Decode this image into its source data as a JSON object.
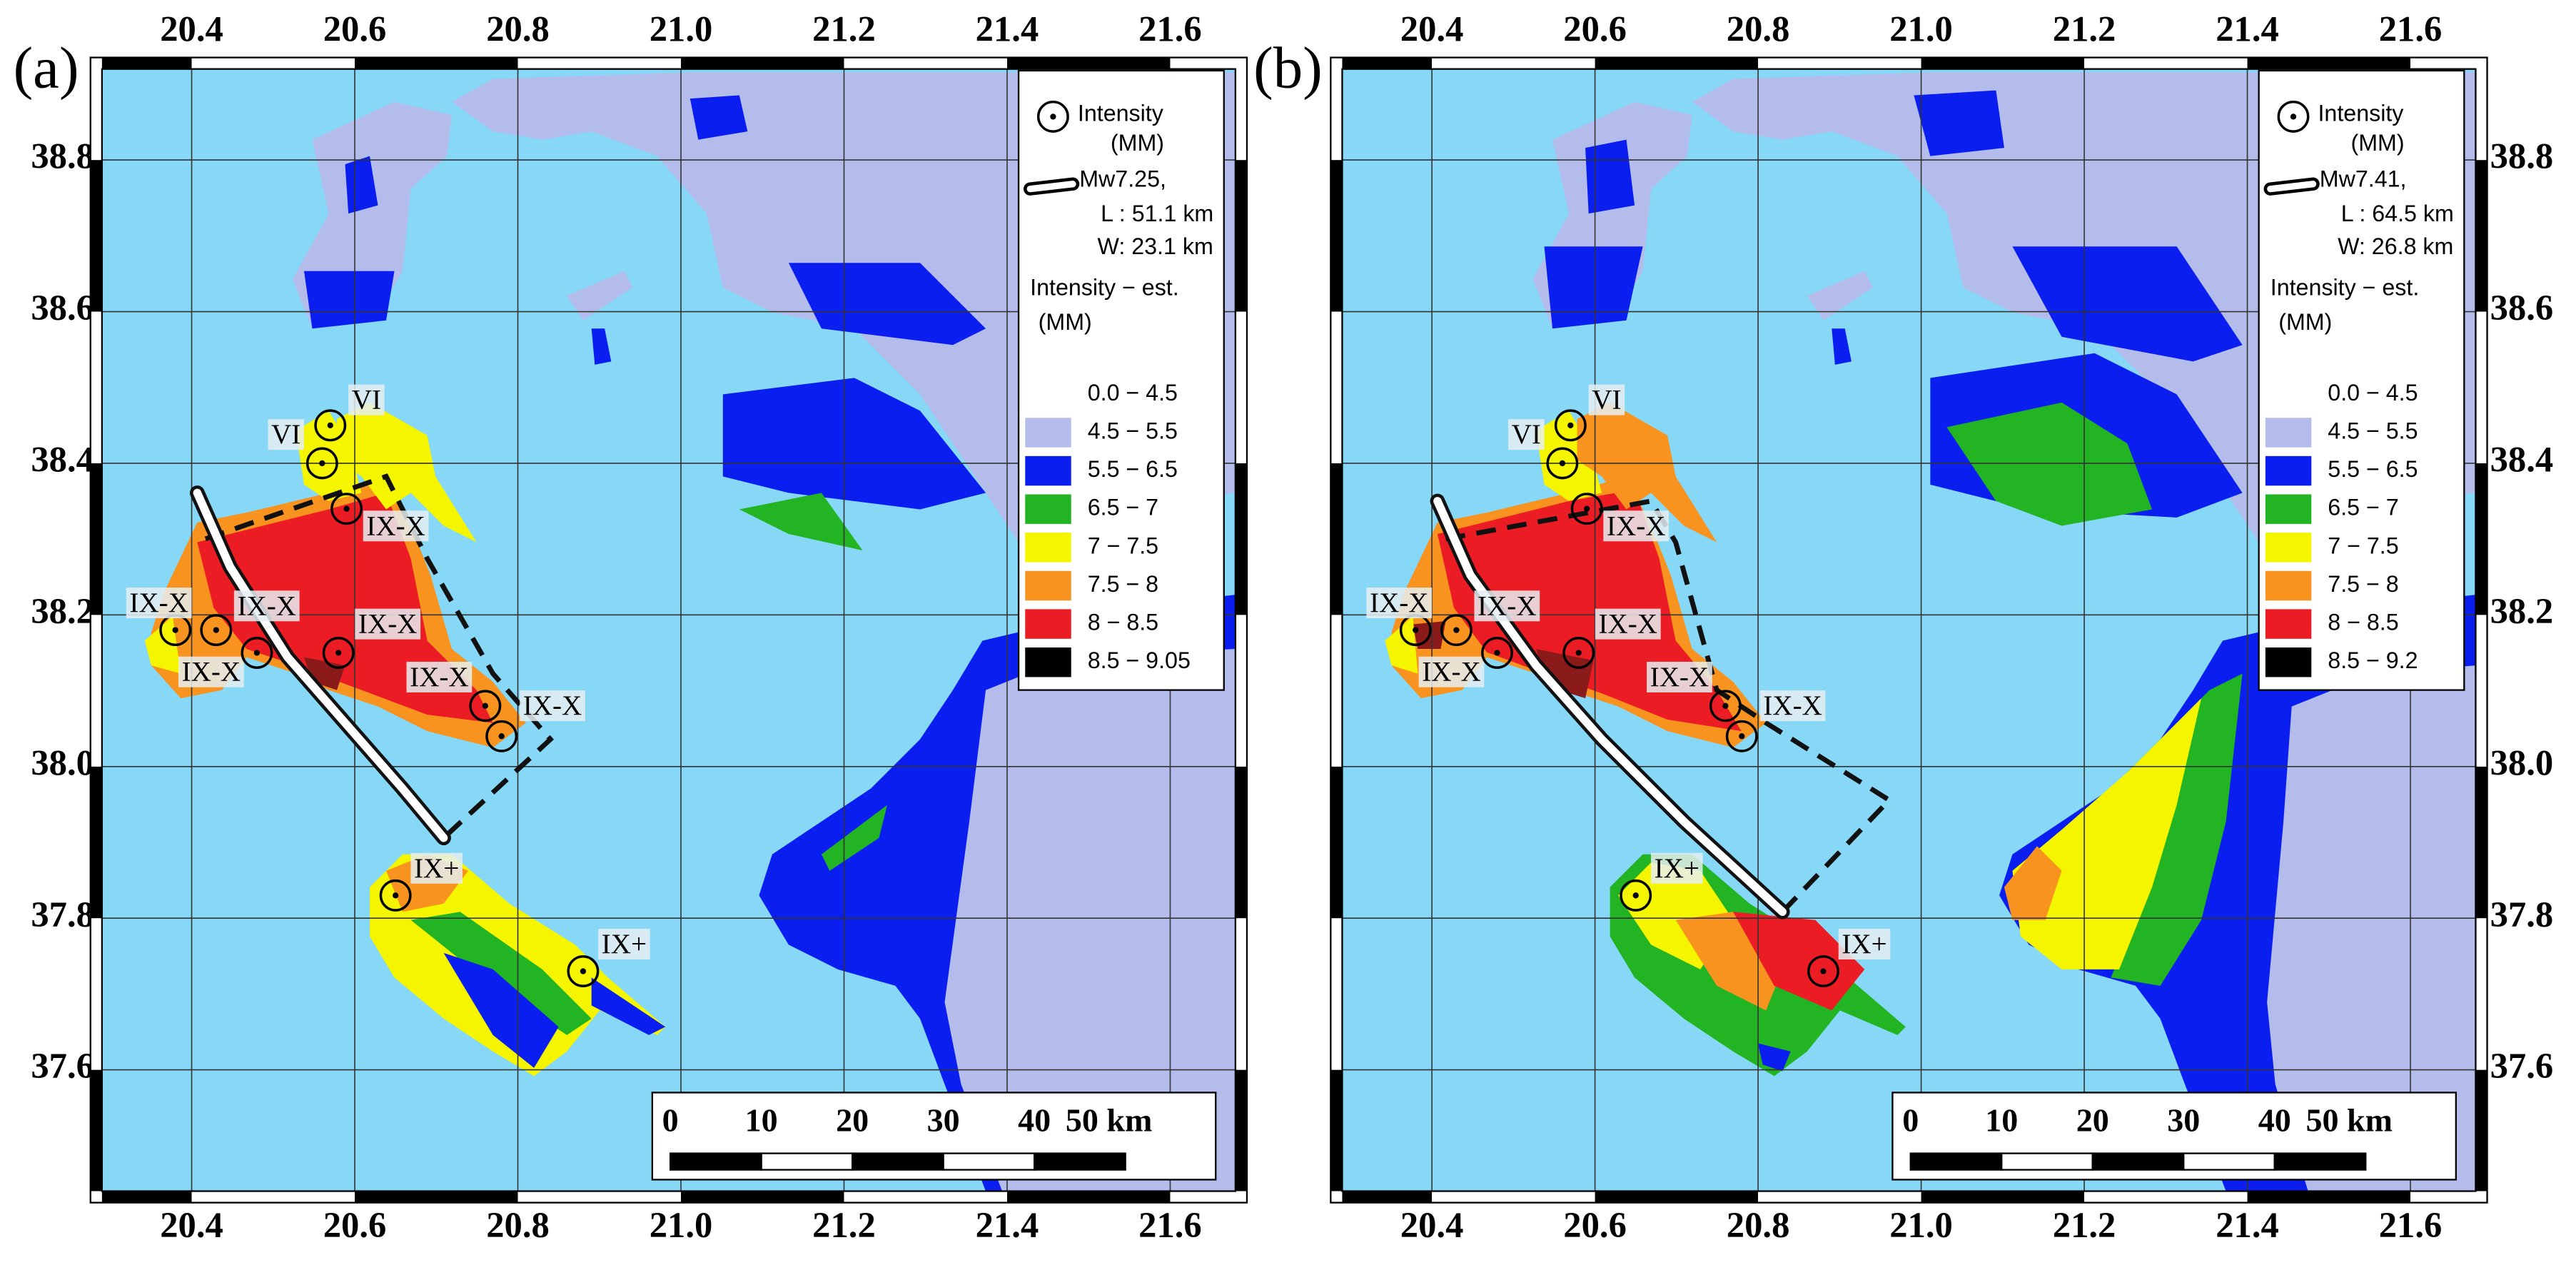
{
  "panels": [
    {
      "label": "(a)",
      "xlim": [
        20.29,
        21.68
      ],
      "ylim": [
        37.44,
        38.92
      ],
      "xticks": [
        20.4,
        20.6,
        20.8,
        {
          "value": 21,
          "label": "21.0"
        },
        21.2,
        21.4,
        21.6
      ],
      "yticks": [
        37.6,
        37.8,
        {
          "value": 38,
          "label": "38.0"
        },
        38.2,
        38.4,
        38.6,
        38.8
      ],
      "sites": [
        {
          "label": "VI",
          "lon": 20.57,
          "lat": 38.45
        },
        {
          "label": "VI",
          "lon": 20.56,
          "lat": 38.4
        },
        {
          "label": "IX-X",
          "lon": 20.59,
          "lat": 38.34
        },
        {
          "label": "IX-X",
          "lon": 20.38,
          "lat": 38.18
        },
        {
          "label": "IX-X",
          "lon": 20.43,
          "lat": 38.18
        },
        {
          "label": "IX-X",
          "lon": 20.48,
          "lat": 38.15
        },
        {
          "label": "IX-X",
          "lon": 20.58,
          "lat": 38.15
        },
        {
          "label": "IX-X",
          "lon": 20.76,
          "lat": 38.08
        },
        {
          "label": "IX-X",
          "lon": 20.78,
          "lat": 38.04
        },
        {
          "label": "IX+",
          "lon": 20.65,
          "lat": 37.83
        },
        {
          "label": "IX+",
          "lon": 20.88,
          "lat": 37.73
        }
      ],
      "legend": {
        "site": [
          "Intensity",
          "(MM)"
        ],
        "fault": [
          "Mw7.25,",
          "L : 51.1 km",
          "W: 23.1 km"
        ],
        "title": [
          "Intensity − est.",
          "(MM)"
        ],
        "classes": [
          {
            "label": "0.0 − 4.5"
          },
          {
            "label": "4.5 − 5.5",
            "color": "#b4bcec"
          },
          {
            "label": "5.5 − 6.5",
            "color": "#0a1ef0"
          },
          {
            "label": "6.5 − 7",
            "color": "#22b422"
          },
          {
            "label": "7 − 7.5",
            "color": "#f5f500"
          },
          {
            "label": "7.5 − 8",
            "color": "#f7931e"
          },
          {
            "label": "8 − 8.5",
            "color": "#ec1c24"
          },
          {
            "label": "8.5 − 9.05",
            "color": "#000000"
          }
        ]
      },
      "scale_bar": [
        0,
        10,
        20,
        30,
        40,
        {
          "value": 50,
          "label": "50 km"
        }
      ]
    },
    {
      "label": "(b)",
      "xlim": [
        20.29,
        21.68
      ],
      "ylim": [
        37.44,
        38.92
      ],
      "xticks": [
        20.4,
        20.6,
        20.8,
        {
          "value": 21,
          "label": "21.0"
        },
        21.2,
        21.4,
        21.6
      ],
      "yticks": [
        37.6,
        37.8,
        {
          "value": 38,
          "label": "38.0"
        },
        38.2,
        38.4,
        38.6,
        38.8
      ],
      "sites": [
        {
          "label": "VI",
          "lon": 20.57,
          "lat": 38.45
        },
        {
          "label": "VI",
          "lon": 20.56,
          "lat": 38.4
        },
        {
          "label": "IX-X",
          "lon": 20.59,
          "lat": 38.34
        },
        {
          "label": "IX-X",
          "lon": 20.38,
          "lat": 38.18
        },
        {
          "label": "IX-X",
          "lon": 20.43,
          "lat": 38.18
        },
        {
          "label": "IX-X",
          "lon": 20.48,
          "lat": 38.15
        },
        {
          "label": "IX-X",
          "lon": 20.58,
          "lat": 38.15
        },
        {
          "label": "IX-X",
          "lon": 20.76,
          "lat": 38.08
        },
        {
          "label": "IX-X",
          "lon": 20.78,
          "lat": 38.04
        },
        {
          "label": "IX+",
          "lon": 20.65,
          "lat": 37.83
        },
        {
          "label": "IX+",
          "lon": 20.88,
          "lat": 37.73
        }
      ],
      "legend": {
        "site": [
          "Intensity",
          "(MM)"
        ],
        "fault": [
          "Mw7.41,",
          "L : 64.5 km",
          "W: 26.8 km"
        ],
        "title": [
          "Intensity − est.",
          "(MM)"
        ],
        "classes": [
          {
            "label": "0.0 − 4.5"
          },
          {
            "label": "4.5 − 5.5",
            "color": "#b4bcec"
          },
          {
            "label": "5.5 − 6.5",
            "color": "#0a1ef0"
          },
          {
            "label": "6.5 − 7",
            "color": "#22b422"
          },
          {
            "label": "7 − 7.5",
            "color": "#f5f500"
          },
          {
            "label": "7.5 − 8",
            "color": "#f7931e"
          },
          {
            "label": "8 − 8.5",
            "color": "#ec1c24"
          },
          {
            "label": "8.5 − 9.2",
            "color": "#000000"
          }
        ]
      },
      "scale_bar": [
        0,
        10,
        20,
        30,
        40,
        {
          "value": 50,
          "label": "50 km"
        }
      ]
    }
  ]
}
